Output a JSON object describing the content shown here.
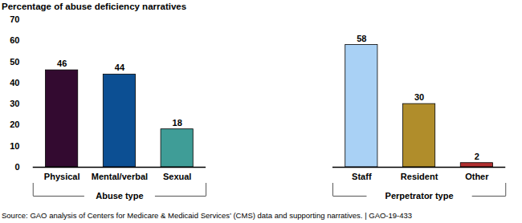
{
  "chart_data": {
    "type": "bar",
    "title": "Percentage of abuse deficiency narratives",
    "ylim": [
      0,
      70
    ],
    "yticks": [
      0,
      10,
      20,
      30,
      40,
      50,
      60,
      70
    ],
    "data_labels": true,
    "groups": [
      {
        "label": "Abuse type",
        "categories": [
          "Physical",
          "Mental/verbal",
          "Sexual"
        ],
        "values": [
          46,
          44,
          18
        ],
        "colors": [
          "#330a30",
          "#0c4f93",
          "#3f9d97"
        ]
      },
      {
        "label": "Perpetrator type",
        "categories": [
          "Staff",
          "Resident",
          "Other"
        ],
        "values": [
          58,
          30,
          2
        ],
        "colors": [
          "#a9d1f5",
          "#b08d2b",
          "#b03030"
        ]
      }
    ],
    "source": "Source: GAO analysis of Centers for Medicare & Medicaid Services’ (CMS) data and supporting narratives.  |  GAO-19-433"
  }
}
